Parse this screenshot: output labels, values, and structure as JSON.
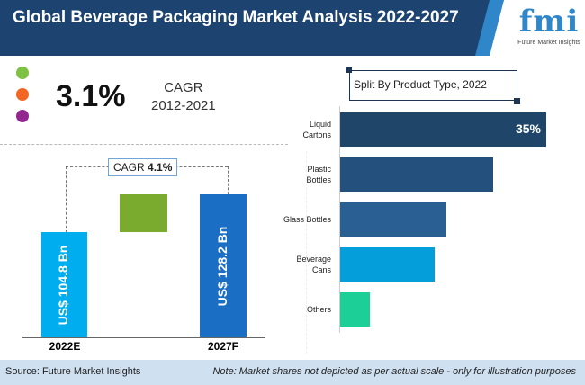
{
  "header": {
    "title": "Global Beverage Packaging Market Analysis 2022-2027"
  },
  "logo": {
    "text": "fmi",
    "subtitle": "Future Market Insights"
  },
  "cagr_hist": {
    "value": "3.1%",
    "label": "CAGR",
    "period": "2012-2021",
    "dot_colors": [
      "#7dc242",
      "#f26522",
      "#92278f"
    ]
  },
  "chart_data": [
    {
      "type": "bar",
      "orientation": "vertical",
      "categories": [
        "2022E",
        "2027F"
      ],
      "values": [
        104.8,
        128.2
      ],
      "value_labels": [
        "US$ 104.8 Bn",
        "US$ 128.2 Bn"
      ],
      "annotation": {
        "label": "CAGR",
        "value": "4.1%"
      },
      "colors": [
        "#00aeef",
        "#1a6fc4",
        "#7aab2f"
      ]
    },
    {
      "type": "bar",
      "orientation": "horizontal",
      "title": "Split By Product Type, 2022",
      "categories": [
        "Liquid Cartons",
        "Plastic Bottles",
        "Glass Bottles",
        "Beverage Cans",
        "Others"
      ],
      "values": [
        35,
        26,
        18,
        16,
        5
      ],
      "data_labels": [
        "35%",
        "",
        "",
        "",
        ""
      ],
      "colors": [
        "#1f4569",
        "#23507c",
        "#2a5f93",
        "#049fda",
        "#1ccf97"
      ]
    }
  ],
  "footer": {
    "source": "Source: Future Market Insights",
    "note": "Note: Market shares not depicted as per actual scale - only for illustration purposes"
  }
}
